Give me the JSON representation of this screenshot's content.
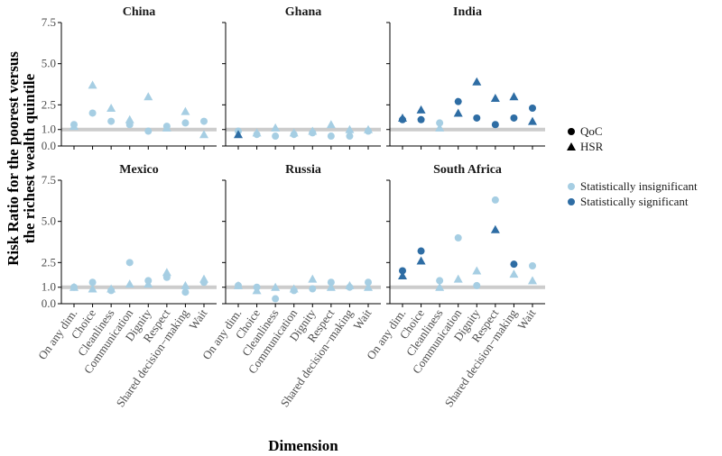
{
  "chart_data": {
    "type": "scatter",
    "ylabel": "Risk Ratio for the poorest versus\nthe richest wealth quintile",
    "xlabel": "Dimension",
    "ylim": [
      0,
      7.5
    ],
    "yticks": [
      0.0,
      1.0,
      2.5,
      5.0,
      7.5
    ],
    "ytick_labels": [
      "0.0",
      "1.0",
      "2.5",
      "5.0",
      "7.5"
    ],
    "reference_line": 1.0,
    "categories": [
      "On any dim.",
      "Choice",
      "Cleanliness",
      "Communication",
      "Dignity",
      "Respect",
      "Shared decision−making",
      "Wait"
    ],
    "legend": {
      "shape": [
        {
          "label": "QoC",
          "marker": "circle"
        },
        {
          "label": "HSR",
          "marker": "triangle"
        }
      ],
      "color": [
        {
          "label": "Statistically insignificant",
          "color": "#a6cee3"
        },
        {
          "label": "Statistically significant",
          "color": "#2e6da4"
        }
      ]
    },
    "colors": {
      "insignificant": "#a6cee3",
      "significant": "#2e6da4",
      "reference": "#cccccc"
    },
    "panels": [
      {
        "title": "China",
        "series": [
          {
            "name": "QoC",
            "values": [
              1.3,
              2.0,
              1.5,
              1.3,
              0.9,
              1.2,
              1.4,
              1.5
            ],
            "significant": [
              false,
              false,
              false,
              false,
              false,
              false,
              false,
              false
            ]
          },
          {
            "name": "HSR",
            "values": [
              1.2,
              3.7,
              2.3,
              1.6,
              3.0,
              1.1,
              2.1,
              0.7
            ],
            "significant": [
              false,
              false,
              false,
              false,
              false,
              false,
              false,
              false
            ]
          }
        ]
      },
      {
        "title": "Ghana",
        "series": [
          {
            "name": "QoC",
            "values": [
              0.9,
              0.7,
              0.6,
              0.7,
              0.8,
              0.6,
              0.6,
              0.9
            ],
            "significant": [
              false,
              false,
              false,
              false,
              false,
              false,
              false,
              false
            ]
          },
          {
            "name": "HSR",
            "values": [
              0.7,
              0.8,
              1.1,
              0.8,
              0.9,
              1.3,
              1.0,
              1.0
            ],
            "significant": [
              true,
              false,
              false,
              false,
              false,
              false,
              false,
              false
            ]
          }
        ]
      },
      {
        "title": "India",
        "series": [
          {
            "name": "QoC",
            "values": [
              1.6,
              1.6,
              1.4,
              2.7,
              1.7,
              1.3,
              1.7,
              2.3
            ],
            "significant": [
              true,
              true,
              false,
              true,
              true,
              true,
              true,
              true
            ]
          },
          {
            "name": "HSR",
            "values": [
              1.7,
              2.2,
              1.1,
              2.0,
              3.9,
              2.9,
              3.0,
              1.5
            ],
            "significant": [
              true,
              true,
              false,
              true,
              true,
              true,
              true,
              true
            ]
          }
        ]
      },
      {
        "title": "Mexico",
        "series": [
          {
            "name": "QoC",
            "values": [
              1.0,
              1.3,
              0.8,
              2.5,
              1.4,
              1.6,
              0.7,
              1.3
            ],
            "significant": [
              false,
              false,
              false,
              false,
              false,
              false,
              false,
              false
            ]
          },
          {
            "name": "HSR",
            "values": [
              1.0,
              0.9,
              0.9,
              1.2,
              1.2,
              1.9,
              1.1,
              1.5
            ],
            "significant": [
              false,
              false,
              false,
              false,
              false,
              false,
              false,
              false
            ]
          }
        ]
      },
      {
        "title": "Russia",
        "series": [
          {
            "name": "QoC",
            "values": [
              1.1,
              1.0,
              0.3,
              0.8,
              0.9,
              1.3,
              1.0,
              1.3
            ],
            "significant": [
              false,
              false,
              false,
              false,
              false,
              false,
              false,
              false
            ]
          },
          {
            "name": "HSR",
            "values": [
              1.1,
              0.8,
              1.0,
              0.9,
              1.5,
              1.0,
              1.1,
              1.0
            ],
            "significant": [
              false,
              false,
              false,
              false,
              false,
              false,
              false,
              false
            ]
          }
        ]
      },
      {
        "title": "South Africa",
        "series": [
          {
            "name": "QoC",
            "values": [
              2.0,
              3.2,
              1.4,
              4.0,
              1.1,
              6.3,
              2.4,
              2.3
            ],
            "significant": [
              true,
              true,
              false,
              false,
              false,
              false,
              true,
              false
            ]
          },
          {
            "name": "HSR",
            "values": [
              1.7,
              2.6,
              1.0,
              1.5,
              2.0,
              4.5,
              1.8,
              1.4
            ],
            "significant": [
              true,
              true,
              false,
              false,
              false,
              true,
              false,
              false
            ]
          }
        ]
      }
    ]
  }
}
